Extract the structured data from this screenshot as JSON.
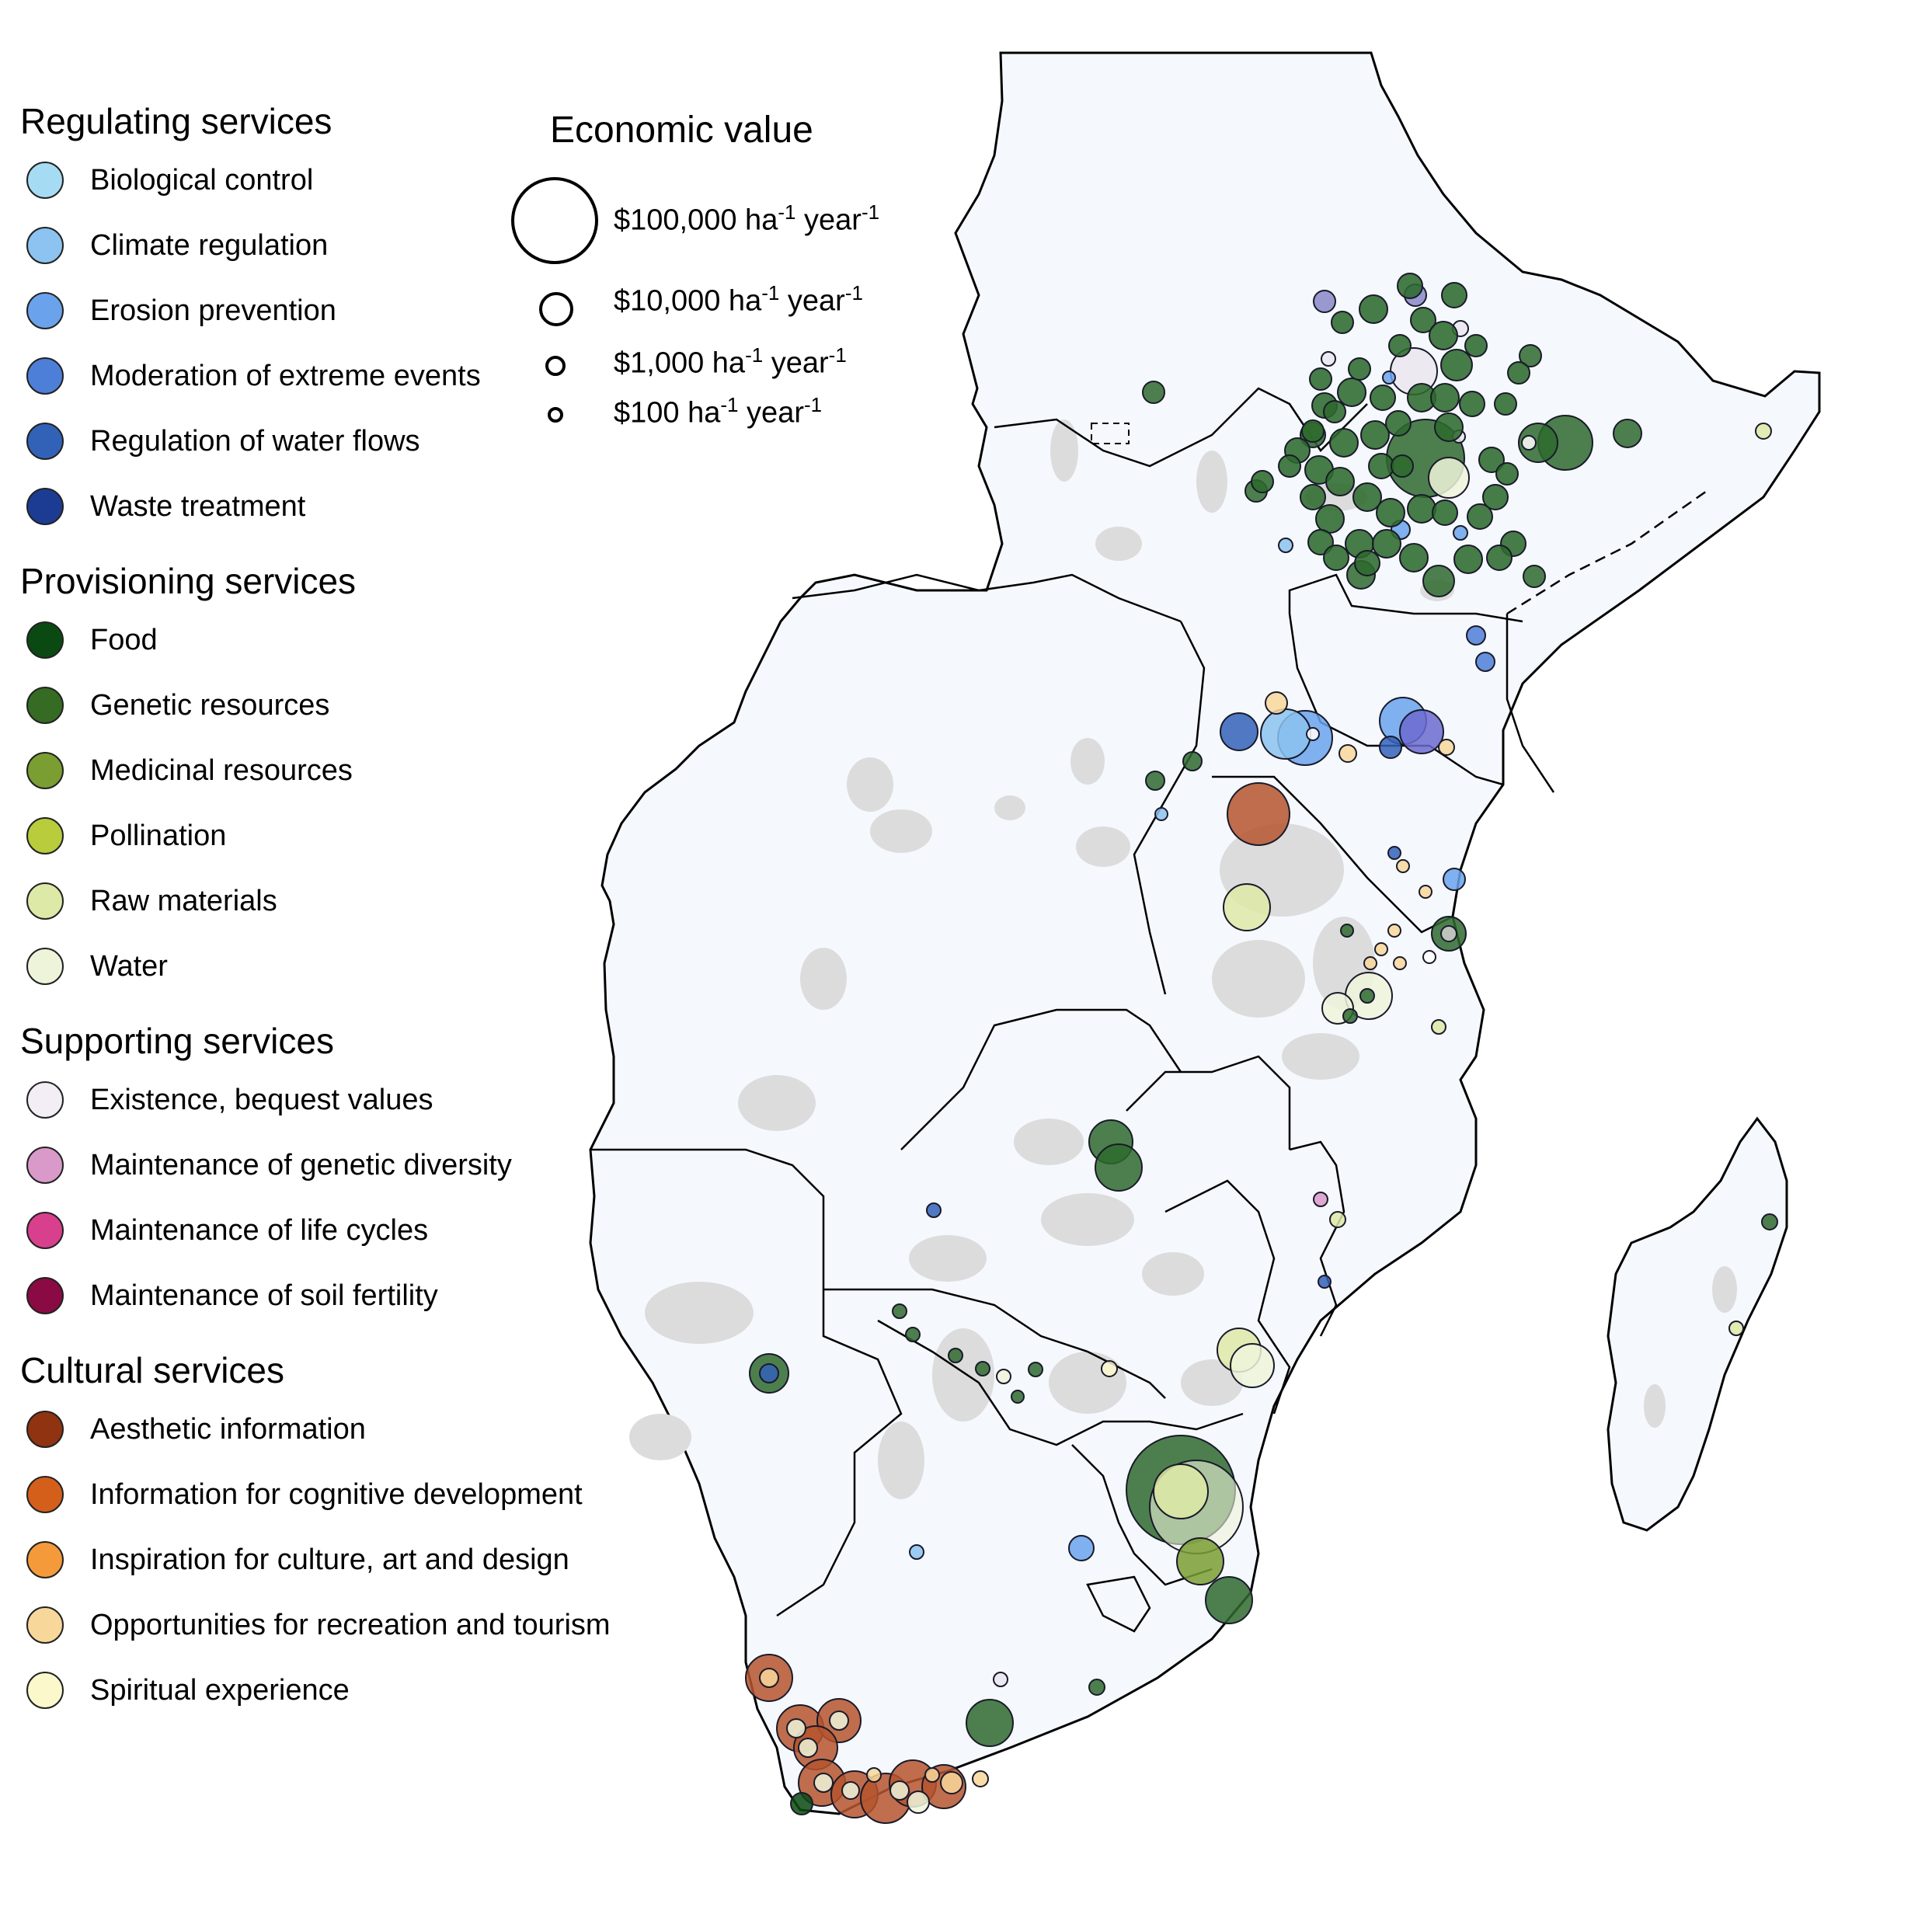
{
  "legend_groups": [
    {
      "title": "Regulating services",
      "items": [
        {
          "label": "Biological control",
          "color": "#a6dcf3"
        },
        {
          "label": "Climate regulation",
          "color": "#8cc3f0"
        },
        {
          "label": "Erosion prevention",
          "color": "#6aa3ec"
        },
        {
          "label": "Moderation of extreme events",
          "color": "#4d7fd8"
        },
        {
          "label": "Regulation of water flows",
          "color": "#3262b8"
        },
        {
          "label": "Waste treatment",
          "color": "#1c3c94"
        }
      ]
    },
    {
      "title": "Provisioning services",
      "items": [
        {
          "label": "Food",
          "color": "#0a4a12"
        },
        {
          "label": "Genetic resources",
          "color": "#356b22"
        },
        {
          "label": "Medicinal resources",
          "color": "#7a9e32"
        },
        {
          "label": "Pollination",
          "color": "#b8cc3c"
        },
        {
          "label": "Raw materials",
          "color": "#dde9a6"
        },
        {
          "label": "Water",
          "color": "#eef4da"
        }
      ]
    },
    {
      "title": "Supporting services",
      "items": [
        {
          "label": "Existence, bequest values",
          "color": "#f3eef5"
        },
        {
          "label": "Maintenance of genetic diversity",
          "color": "#d99ac9"
        },
        {
          "label": "Maintenance of life cycles",
          "color": "#d8408e"
        },
        {
          "label": "Maintenance of soil fertility",
          "color": "#8a0a44"
        }
      ]
    },
    {
      "title": "Cultural services",
      "items": [
        {
          "label": "Aesthetic information",
          "color": "#8f3310"
        },
        {
          "label": "Information for cognitive development",
          "color": "#d45f1a"
        },
        {
          "label": "Inspiration for culture, art and design",
          "color": "#f59a3a"
        },
        {
          "label": "Opportunities for recreation and tourism",
          "color": "#f8d79a"
        },
        {
          "label": "Spiritual experience",
          "color": "#fbf8cc"
        }
      ]
    }
  ],
  "economic_value": {
    "title": "Economic value",
    "scale": [
      {
        "value": "$100,000",
        "unit": " ha",
        "exp1": "-1",
        "mid": " year",
        "exp2": "-1"
      },
      {
        "value": "$10,000",
        "unit": " ha",
        "exp1": "-1",
        "mid": " year",
        "exp2": "-1"
      },
      {
        "value": "$1,000",
        "unit": " ha",
        "exp1": "-1",
        "mid": " year",
        "exp2": "-1"
      },
      {
        "value": "$100",
        "unit": " ha",
        "exp1": "-1",
        "mid": " year",
        "exp2": "-1"
      }
    ]
  },
  "map_colors": {
    "land": "#f5f8fd",
    "protected_area": "#dcdcdc",
    "border": "#000000",
    "point_green": "#2e6a2e",
    "point_brown": "#b5552e"
  }
}
